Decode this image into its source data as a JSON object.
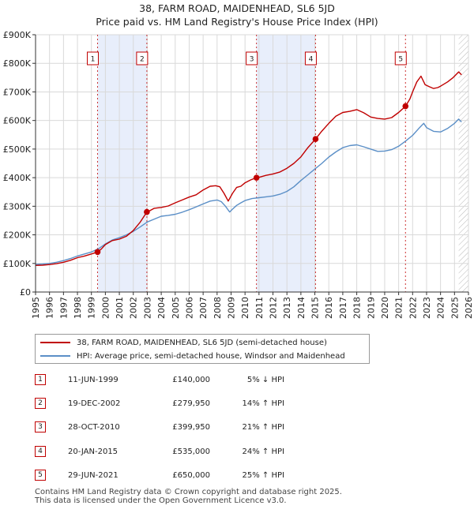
{
  "header": {
    "title_line1": "38, FARM ROAD, MAIDENHEAD, SL6 5JD",
    "title_line2": "Price paid vs. HM Land Registry's House Price Index (HPI)"
  },
  "legend": {
    "property_label": "38, FARM ROAD, MAIDENHEAD, SL6 5JD (semi-detached house)",
    "hpi_label": "HPI: Average price, semi-detached house, Windsor and Maidenhead"
  },
  "colors": {
    "property": "#c00000",
    "hpi": "#5b8fc7",
    "shade": "#e8eefb",
    "grid": "#d9d9d9",
    "hatch": "#888888"
  },
  "sales": [
    {
      "num": "1",
      "date": "11-JUN-1999",
      "price": "£140,000",
      "hpi": "5% ↓ HPI"
    },
    {
      "num": "2",
      "date": "19-DEC-2002",
      "price": "£279,950",
      "hpi": "14% ↑ HPI"
    },
    {
      "num": "3",
      "date": "28-OCT-2010",
      "price": "£399,950",
      "hpi": "21% ↑ HPI"
    },
    {
      "num": "4",
      "date": "20-JAN-2015",
      "price": "£535,000",
      "hpi": "24% ↑ HPI"
    },
    {
      "num": "5",
      "date": "29-JUN-2021",
      "price": "£650,000",
      "hpi": "25% ↑ HPI"
    }
  ],
  "footer": {
    "line1": "Contains HM Land Registry data © Crown copyright and database right 2025.",
    "line2": "This data is licensed under the Open Government Licence v3.0."
  },
  "chart_data": {
    "type": "line",
    "title": "Price paid vs. HM Land Registry's House Price Index (HPI)",
    "xlabel": "",
    "ylabel": "",
    "xlim": [
      1995,
      2026
    ],
    "ylim": [
      0,
      900000
    ],
    "x_ticks": [
      "1995",
      "1996",
      "1997",
      "1998",
      "1999",
      "2000",
      "2001",
      "2002",
      "2003",
      "2004",
      "2005",
      "2006",
      "2007",
      "2008",
      "2009",
      "2010",
      "2011",
      "2012",
      "2013",
      "2014",
      "2015",
      "2016",
      "2017",
      "2018",
      "2019",
      "2020",
      "2021",
      "2022",
      "2023",
      "2024",
      "2025",
      "2026"
    ],
    "y_ticks": [
      {
        "value": 0,
        "label": "£0"
      },
      {
        "value": 100000,
        "label": "£100K"
      },
      {
        "value": 200000,
        "label": "£200K"
      },
      {
        "value": 300000,
        "label": "£300K"
      },
      {
        "value": 400000,
        "label": "£400K"
      },
      {
        "value": 500000,
        "label": "£500K"
      },
      {
        "value": 600000,
        "label": "£600K"
      },
      {
        "value": 700000,
        "label": "£700K"
      },
      {
        "value": 800000,
        "label": "£800K"
      },
      {
        "value": 900000,
        "label": "£900K"
      }
    ],
    "shaded_ranges": [
      [
        1999.44,
        2002.97
      ],
      [
        2010.82,
        2015.05
      ]
    ],
    "future_from": 2025.3,
    "series": [
      {
        "name": "38, FARM ROAD, MAIDENHEAD, SL6 5JD (semi-detached house)",
        "x": [
          1995.0,
          1995.5,
          1996.0,
          1996.5,
          1997.0,
          1997.5,
          1998.0,
          1998.5,
          1999.0,
          1999.44,
          1999.7,
          2000.0,
          2000.5,
          2001.0,
          2001.5,
          2002.0,
          2002.5,
          2002.97,
          2003.2,
          2003.5,
          2004.0,
          2004.5,
          2005.0,
          2005.5,
          2006.0,
          2006.5,
          2007.0,
          2007.5,
          2007.9,
          2008.2,
          2008.5,
          2008.8,
          2009.1,
          2009.4,
          2009.7,
          2010.0,
          2010.4,
          2010.82,
          2011.0,
          2011.5,
          2012.0,
          2012.5,
          2013.0,
          2013.5,
          2014.0,
          2014.5,
          2015.05,
          2015.5,
          2016.0,
          2016.5,
          2017.0,
          2017.5,
          2018.0,
          2018.5,
          2019.0,
          2019.5,
          2020.0,
          2020.5,
          2021.0,
          2021.49,
          2021.8,
          2022.0,
          2022.3,
          2022.6,
          2022.9,
          2023.2,
          2023.5,
          2023.8,
          2024.0,
          2024.5,
          2024.9,
          2025.2,
          2025.3,
          2025.5
        ],
        "values": [
          93000,
          94000,
          96000,
          99000,
          104000,
          111000,
          120000,
          126000,
          133000,
          140000,
          150000,
          166000,
          180000,
          185000,
          195000,
          215000,
          245000,
          279950,
          285000,
          293000,
          296000,
          301000,
          312000,
          322000,
          332000,
          340000,
          357000,
          370000,
          372000,
          368000,
          345000,
          318000,
          345000,
          366000,
          370000,
          382000,
          392000,
          399950,
          401000,
          408000,
          413000,
          420000,
          433000,
          450000,
          473000,
          505000,
          535000,
          563000,
          590000,
          615000,
          628000,
          632000,
          638000,
          627000,
          612000,
          607000,
          605000,
          610000,
          628000,
          650000,
          675000,
          700000,
          735000,
          755000,
          725000,
          718000,
          712000,
          715000,
          720000,
          735000,
          750000,
          765000,
          770000,
          760000
        ]
      },
      {
        "name": "HPI: Average price, semi-detached house, Windsor and Maidenhead",
        "x": [
          1995.0,
          1995.5,
          1996.0,
          1996.5,
          1997.0,
          1997.5,
          1998.0,
          1998.5,
          1999.0,
          1999.5,
          2000.0,
          2000.5,
          2001.0,
          2001.5,
          2002.0,
          2002.5,
          2003.0,
          2003.5,
          2004.0,
          2004.5,
          2005.0,
          2005.5,
          2006.0,
          2006.5,
          2007.0,
          2007.5,
          2008.0,
          2008.3,
          2008.6,
          2008.9,
          2009.1,
          2009.4,
          2009.7,
          2010.0,
          2010.5,
          2011.0,
          2011.5,
          2012.0,
          2012.5,
          2013.0,
          2013.5,
          2014.0,
          2014.5,
          2015.0,
          2015.5,
          2016.0,
          2016.5,
          2017.0,
          2017.5,
          2018.0,
          2018.5,
          2019.0,
          2019.5,
          2020.0,
          2020.5,
          2021.0,
          2021.5,
          2022.0,
          2022.5,
          2022.8,
          2023.0,
          2023.5,
          2024.0,
          2024.5,
          2025.0,
          2025.3,
          2025.5
        ],
        "values": [
          97000,
          98000,
          100000,
          104000,
          110000,
          117000,
          126000,
          133000,
          140000,
          151000,
          168000,
          182000,
          190000,
          200000,
          212000,
          228000,
          245000,
          255000,
          265000,
          268000,
          272000,
          279000,
          288000,
          298000,
          308000,
          318000,
          322000,
          316000,
          300000,
          280000,
          290000,
          303000,
          312000,
          320000,
          327000,
          330000,
          333000,
          336000,
          342000,
          352000,
          368000,
          390000,
          410000,
          430000,
          450000,
          472000,
          490000,
          505000,
          512000,
          515000,
          508000,
          500000,
          492000,
          493000,
          498000,
          510000,
          528000,
          548000,
          575000,
          590000,
          575000,
          562000,
          560000,
          572000,
          590000,
          605000,
          595000
        ]
      }
    ],
    "markers": [
      {
        "label": "1",
        "x": 1999.44,
        "y": 140000
      },
      {
        "label": "2",
        "x": 2002.97,
        "y": 279950
      },
      {
        "label": "3",
        "x": 2010.82,
        "y": 399950
      },
      {
        "label": "4",
        "x": 2015.05,
        "y": 535000
      },
      {
        "label": "5",
        "x": 2021.49,
        "y": 650000
      }
    ]
  }
}
